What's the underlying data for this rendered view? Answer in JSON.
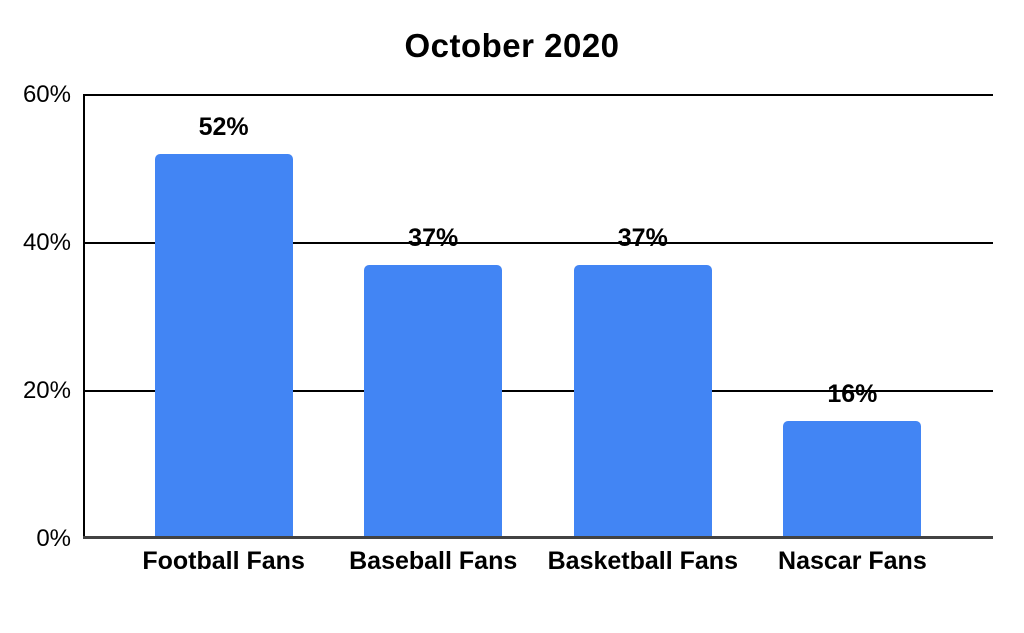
{
  "chart_data": {
    "type": "bar",
    "title": "October 2020",
    "categories": [
      "Football Fans",
      "Baseball Fans",
      "Basketball Fans",
      "Nascar Fans"
    ],
    "values": [
      52,
      37,
      37,
      16
    ],
    "data_labels": [
      "52%",
      "37%",
      "37%",
      "16%"
    ],
    "series": [
      {
        "name": "October 2020",
        "values": [
          52,
          37,
          37,
          16
        ]
      }
    ],
    "y_ticks": [
      {
        "value": 0,
        "label": "0%"
      },
      {
        "value": 20,
        "label": "20%"
      },
      {
        "value": 40,
        "label": "40%"
      },
      {
        "value": 60,
        "label": "60%"
      }
    ],
    "ylim": [
      0,
      60
    ],
    "xlabel": "",
    "ylabel": "",
    "grid": true,
    "legend": "none",
    "colors": {
      "bar": "#4285F4",
      "gridline": "#000000",
      "axis": "#424242",
      "text": "#000000",
      "background": "#FFFFFF"
    }
  }
}
